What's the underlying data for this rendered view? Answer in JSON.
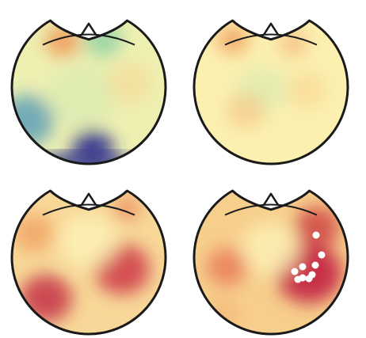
{
  "figure": {
    "background": "#ffffff",
    "outline_color": "#1a1a1a",
    "colormap": [
      "#2b2f8e",
      "#3f8fb8",
      "#8ccfa4",
      "#d6eab0",
      "#fbf3b4",
      "#f8d28c",
      "#ef9a5a",
      "#d85b45",
      "#b5234a"
    ],
    "panels": [
      {
        "base": "#eef0b2",
        "blobs": [
          {
            "color": "#ef9a5a",
            "level": 0.9
          },
          {
            "color": "#8ccfa4",
            "level": 0.8
          },
          {
            "color": "#3f8fb8",
            "level": 0.7
          },
          {
            "color": "#2b2f8e",
            "level": 0.9
          },
          {
            "color": "#d6eab0",
            "level": 0.6
          },
          {
            "color": "#f8d28c",
            "level": 0.5
          }
        ],
        "markers": []
      },
      {
        "base": "#fbf0b0",
        "blobs": [
          {
            "color": "#ef9a5a",
            "level": 0.8
          },
          {
            "color": "#f3b175",
            "level": 0.7
          },
          {
            "color": "#d6eab0",
            "level": 0.6
          },
          {
            "color": "#f8d28c",
            "level": 0.6
          },
          {
            "color": "#f5c080",
            "level": 0.6
          }
        ],
        "markers": []
      },
      {
        "base": "#f8d898",
        "blobs": [
          {
            "color": "#c83a4a",
            "level": 0.9
          },
          {
            "color": "#d0404a",
            "level": 0.9
          },
          {
            "color": "#ef9a5a",
            "level": 0.7
          },
          {
            "color": "#fdf2b8",
            "level": 0.8
          },
          {
            "color": "#e8805a",
            "level": 0.7
          }
        ],
        "markers": []
      },
      {
        "base": "#f7cf8c",
        "blobs": [
          {
            "color": "#c8324a",
            "level": 1.0
          },
          {
            "color": "#d04a48",
            "level": 0.9
          },
          {
            "color": "#fdf2b8",
            "level": 0.8
          },
          {
            "color": "#e87856",
            "level": 0.8
          },
          {
            "color": "#f3b175",
            "level": 0.6
          }
        ],
        "markers": [
          {
            "value": 1
          },
          {
            "value": 1
          },
          {
            "value": 1
          },
          {
            "value": 1
          },
          {
            "value": 1
          },
          {
            "value": 1
          },
          {
            "value": 1
          },
          {
            "value": 1
          },
          {
            "value": 1
          }
        ],
        "marker_color": "#ffffff"
      }
    ]
  }
}
